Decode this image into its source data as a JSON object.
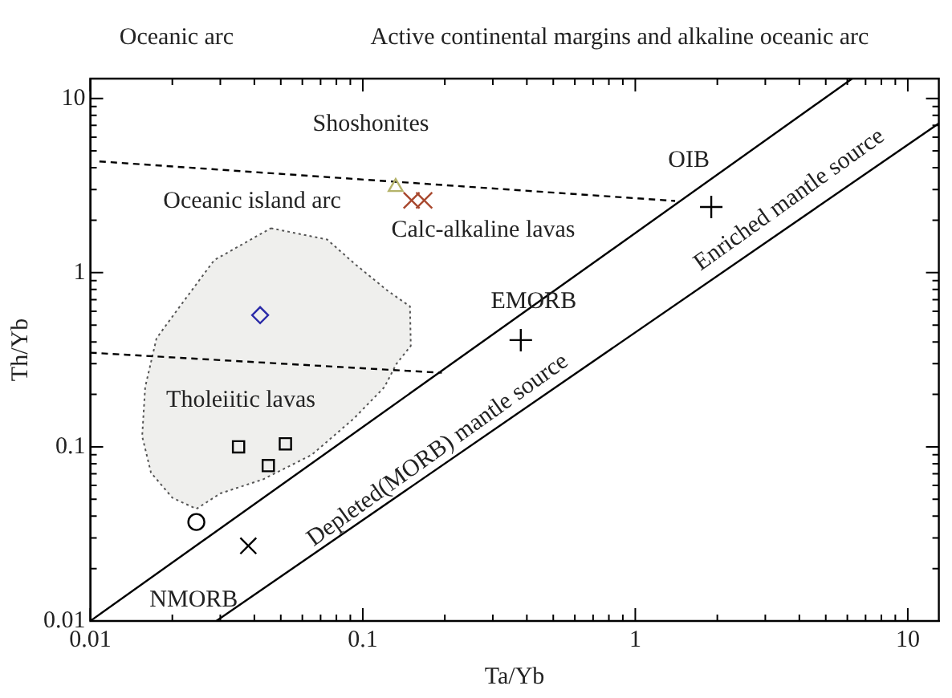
{
  "chart_data": {
    "type": "scatter",
    "xlabel": "Ta/Yb",
    "ylabel": "Th/Yb",
    "log": "xy",
    "grid": false,
    "legend": false,
    "xlim": [
      0.01,
      13
    ],
    "ylim": [
      0.01,
      13
    ],
    "xticks": [
      0.01,
      {
        "value": 0.02,
        "label": null
      },
      {
        "value": 0.03,
        "label": null
      },
      {
        "value": 0.04,
        "label": null
      },
      {
        "value": 0.05,
        "label": null
      },
      {
        "value": 0.06,
        "label": null
      },
      {
        "value": 0.07,
        "label": null
      },
      {
        "value": 0.08,
        "label": null
      },
      {
        "value": 0.09,
        "label": null
      },
      0.1,
      {
        "value": 0.2,
        "label": null
      },
      {
        "value": 0.3,
        "label": null
      },
      {
        "value": 0.4,
        "label": null
      },
      {
        "value": 0.5,
        "label": null
      },
      {
        "value": 0.6,
        "label": null
      },
      {
        "value": 0.7,
        "label": null
      },
      {
        "value": 0.8,
        "label": null
      },
      {
        "value": 0.9,
        "label": null
      },
      1,
      {
        "value": 2,
        "label": null
      },
      {
        "value": 3,
        "label": null
      },
      {
        "value": 4,
        "label": null
      },
      {
        "value": 5,
        "label": null
      },
      {
        "value": 6,
        "label": null
      },
      {
        "value": 7,
        "label": null
      },
      {
        "value": 8,
        "label": null
      },
      {
        "value": 9,
        "label": null
      },
      10
    ],
    "yticks": [
      0.01,
      {
        "value": 0.02,
        "label": null
      },
      {
        "value": 0.03,
        "label": null
      },
      {
        "value": 0.04,
        "label": null
      },
      {
        "value": 0.05,
        "label": null
      },
      {
        "value": 0.06,
        "label": null
      },
      {
        "value": 0.07,
        "label": null
      },
      {
        "value": 0.08,
        "label": null
      },
      {
        "value": 0.09,
        "label": null
      },
      0.1,
      {
        "value": 0.2,
        "label": null
      },
      {
        "value": 0.3,
        "label": null
      },
      {
        "value": 0.4,
        "label": null
      },
      {
        "value": 0.5,
        "label": null
      },
      {
        "value": 0.6,
        "label": null
      },
      {
        "value": 0.7,
        "label": null
      },
      {
        "value": 0.8,
        "label": null
      },
      {
        "value": 0.9,
        "label": null
      },
      1,
      {
        "value": 2,
        "label": null
      },
      {
        "value": 3,
        "label": null
      },
      {
        "value": 4,
        "label": null
      },
      {
        "value": 5,
        "label": null
      },
      {
        "value": 6,
        "label": null
      },
      {
        "value": 7,
        "label": null
      },
      {
        "value": 8,
        "label": null
      },
      {
        "value": 9,
        "label": null
      },
      10
    ],
    "series": [
      {
        "type": "area",
        "color": "#efefed",
        "line_style": "dotted",
        "marker": "none",
        "x": [
          0.046,
          0.074,
          0.093,
          0.123,
          0.149,
          0.15,
          0.133,
          0.12,
          0.093,
          0.065,
          0.043,
          0.03,
          0.0245,
          0.02,
          0.0167,
          0.0155,
          0.0159,
          0.0175,
          0.021,
          0.0285,
          0.046
        ],
        "values": [
          1.8,
          1.55,
          1.13,
          0.79,
          0.64,
          0.38,
          0.3,
          0.22,
          0.146,
          0.09,
          0.065,
          0.054,
          0.044,
          0.051,
          0.071,
          0.115,
          0.22,
          0.42,
          0.62,
          1.18,
          1.8
        ]
      },
      {
        "type": "line",
        "color": "#000000",
        "marker": "none",
        "x": [
          0.01,
          6.25
        ],
        "values": [
          0.01,
          13
        ]
      },
      {
        "type": "line",
        "color": "#000000",
        "marker": "none",
        "x": [
          0.029,
          13
        ],
        "values": [
          0.01,
          7.2
        ]
      },
      {
        "type": "line",
        "color": "#000000",
        "marker": "none",
        "line_style": "dashed",
        "x": [
          0.0108,
          1.4
        ],
        "values": [
          4.35,
          2.58
        ]
      },
      {
        "type": "line",
        "color": "#000000",
        "marker": "none",
        "line_style": "dashed",
        "x": [
          0.01,
          0.195
        ],
        "values": [
          0.347,
          0.266
        ]
      },
      {
        "color": "#b5b36a",
        "marker": "triangle",
        "x": [
          0.132
        ],
        "values": [
          3.1
        ]
      },
      {
        "color": "#a8482e",
        "marker": "x",
        "x": [
          0.151,
          0.168
        ],
        "values": [
          2.6,
          2.6
        ]
      },
      {
        "color": "#2b2ba8",
        "marker": "diamond",
        "x": [
          0.042
        ],
        "values": [
          0.57
        ]
      },
      {
        "color": "#000000",
        "marker": "square",
        "x": [
          0.035,
          0.045,
          0.052
        ],
        "values": [
          0.1,
          0.078,
          0.104
        ]
      },
      {
        "color": "#000000",
        "marker": "circle",
        "x": [
          0.0245
        ],
        "values": [
          0.037
        ]
      },
      {
        "color": "#000000",
        "marker": "x",
        "x": [
          0.038
        ],
        "values": [
          0.027
        ]
      },
      {
        "color": "#000000",
        "marker": "cross",
        "x": [
          0.38
        ],
        "values": [
          0.41
        ]
      },
      {
        "color": "#000000",
        "marker": "cross",
        "x": [
          1.9
        ],
        "values": [
          2.38
        ]
      }
    ],
    "annotations": [
      "Oceanic arc",
      "Active continental margins and alkaline oceanic arc",
      "Shoshonites",
      "Oceanic island arc",
      "Calc-alkaline lavas",
      "Tholeiitic lavas",
      "Depleted(MORB) mantle source",
      "Enriched mantle source",
      {
        "text": "EMORB",
        "x": 0.38,
        "y": 0.41
      },
      {
        "text": "OIB",
        "x": 1.9,
        "y": 2.38
      },
      {
        "text": "NMORB",
        "x": 0.038,
        "y": 0.027
      }
    ]
  }
}
